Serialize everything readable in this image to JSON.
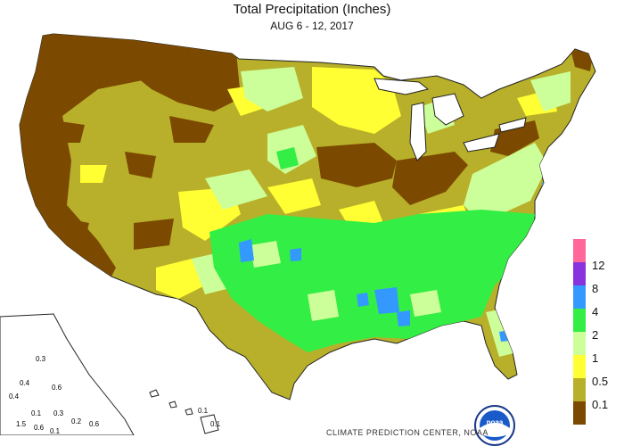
{
  "map": {
    "title": "Total Precipitation (Inches)",
    "subtitle": "AUG 6 - 12, 2017",
    "credit": "CLIMATE PREDICTION CENTER, NOAA",
    "logo_text": "noaa",
    "legend_colors": [
      "#7b4900",
      "#b8b02a",
      "#ffff33",
      "#ccff99",
      "#33ee44",
      "#3399ff",
      "#8833dd",
      "#ff6699"
    ],
    "legend": [
      {
        "label": "0.1",
        "color": "#7b4900"
      },
      {
        "label": "0.5",
        "color": "#b8b02a"
      },
      {
        "label": "1",
        "color": "#ffff33"
      },
      {
        "label": "2",
        "color": "#ccff99"
      },
      {
        "label": "4",
        "color": "#33ee44"
      },
      {
        "label": "8",
        "color": "#3399ff"
      },
      {
        "label": "12",
        "color": "#8833dd"
      },
      {
        "label": "",
        "color": "#ff6699"
      }
    ],
    "alaska_labels": [
      "0.3",
      "0.4",
      "0.6",
      "0.3",
      "0.4",
      "0.1",
      "0.6",
      "0.2",
      "1.5",
      "0.6",
      "0.1"
    ],
    "hawaii_labels": [
      "0.1",
      "0.1"
    ]
  }
}
